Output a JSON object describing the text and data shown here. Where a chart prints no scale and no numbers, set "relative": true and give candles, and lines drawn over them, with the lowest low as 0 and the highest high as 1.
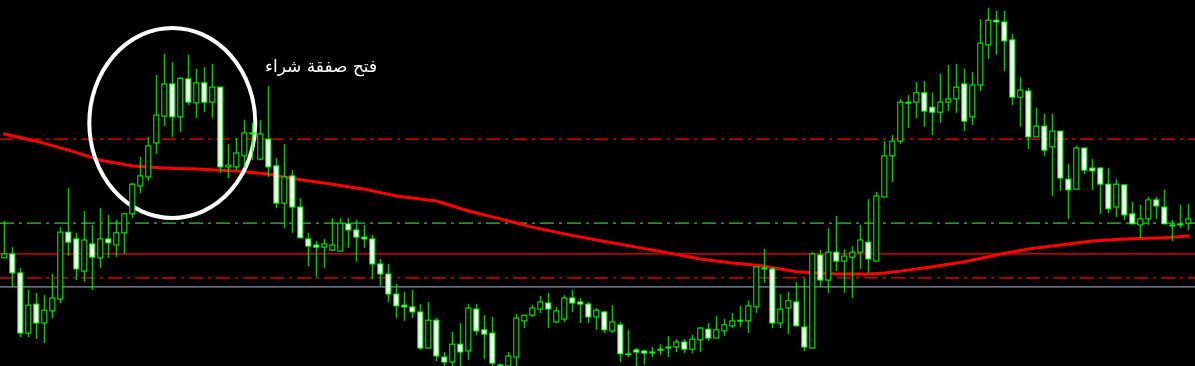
{
  "chart_data": {
    "type": "candlestick",
    "relative": true,
    "annotations": [
      "فتح صفقة شراء"
    ],
    "categories": [
      null,
      null,
      null,
      null,
      null,
      null,
      null,
      null,
      null,
      null,
      null,
      null,
      null,
      null,
      null,
      null,
      null,
      null,
      null,
      null,
      null,
      null,
      null,
      null,
      null,
      null,
      null,
      null,
      null,
      null,
      null,
      null,
      null,
      null,
      null,
      null,
      null,
      null,
      null,
      null,
      null,
      null,
      null,
      null,
      null,
      null,
      null,
      null,
      null,
      null,
      null,
      null,
      null,
      null,
      null,
      null,
      null,
      null,
      null,
      null,
      null,
      null,
      null,
      null,
      null,
      null,
      null,
      null,
      null,
      null,
      null,
      null,
      null,
      null,
      null,
      null,
      null,
      null,
      null,
      null,
      null,
      null,
      null,
      null,
      null,
      null,
      null,
      null,
      null,
      null,
      null,
      null,
      null,
      null,
      null,
      null,
      null,
      null,
      null,
      null,
      null,
      null,
      null,
      null,
      null,
      null,
      null,
      null,
      null,
      null,
      null,
      null,
      null,
      null,
      null,
      null,
      null,
      null,
      null,
      null,
      null,
      null,
      null,
      null,
      null,
      null,
      null,
      null,
      null,
      null,
      null,
      null,
      null,
      null,
      null,
      null,
      null,
      null,
      null,
      null,
      null,
      null,
      null,
      null,
      null,
      null,
      null,
      null,
      null
    ],
    "ohlc": [
      [
        0.302,
        0.405,
        0.302,
        0.313
      ],
      [
        0.313,
        0.332,
        0.221,
        0.26
      ],
      [
        0.26,
        0.274,
        0.081,
        0.092
      ],
      [
        0.092,
        0.212,
        0.081,
        0.17
      ],
      [
        0.173,
        0.204,
        0.075,
        0.12
      ],
      [
        0.12,
        0.198,
        0.064,
        0.156
      ],
      [
        0.154,
        0.257,
        0.134,
        0.19
      ],
      [
        0.187,
        0.388,
        0.176,
        0.374
      ],
      [
        0.374,
        0.497,
        0.307,
        0.346
      ],
      [
        0.355,
        0.372,
        0.24,
        0.271
      ],
      [
        0.265,
        0.433,
        0.235,
        0.352
      ],
      [
        0.341,
        0.394,
        0.212,
        0.304
      ],
      [
        0.302,
        0.441,
        0.274,
        0.355
      ],
      [
        0.355,
        0.422,
        0.302,
        0.344
      ],
      [
        0.338,
        0.408,
        0.304,
        0.372
      ],
      [
        0.372,
        0.425,
        0.313,
        0.425
      ],
      [
        0.425,
        0.511,
        0.413,
        0.508
      ],
      [
        0.503,
        0.584,
        0.483,
        0.531
      ],
      [
        0.528,
        0.64,
        0.517,
        0.615
      ],
      [
        0.623,
        0.813,
        0.592,
        0.701
      ],
      [
        0.698,
        0.872,
        0.67,
        0.788
      ],
      [
        0.788,
        0.849,
        0.64,
        0.696
      ],
      [
        0.696,
        0.807,
        0.654,
        0.804
      ],
      [
        0.802,
        0.869,
        0.729,
        0.737
      ],
      [
        0.735,
        0.83,
        0.693,
        0.791
      ],
      [
        0.791,
        0.835,
        0.709,
        0.737
      ],
      [
        0.737,
        0.844,
        0.693,
        0.779
      ],
      [
        0.779,
        0.779,
        0.539,
        0.556
      ],
      [
        0.556,
        0.62,
        0.525,
        0.561
      ],
      [
        0.556,
        0.637,
        0.547,
        0.595
      ],
      [
        0.587,
        0.687,
        0.553,
        0.651
      ],
      [
        0.651,
        0.679,
        0.575,
        0.651
      ],
      [
        0.578,
        0.687,
        0.575,
        0.648
      ],
      [
        0.634,
        0.782,
        0.528,
        0.556
      ],
      [
        0.559,
        0.581,
        0.441,
        0.455
      ],
      [
        0.455,
        0.62,
        0.385,
        0.528
      ],
      [
        0.531,
        0.547,
        0.372,
        0.444
      ],
      [
        0.444,
        0.469,
        0.358,
        0.358
      ],
      [
        0.355,
        0.372,
        0.279,
        0.335
      ],
      [
        0.338,
        0.349,
        0.249,
        0.332
      ],
      [
        0.332,
        0.355,
        0.274,
        0.341
      ],
      [
        0.324,
        0.413,
        0.321,
        0.338
      ],
      [
        0.321,
        0.413,
        0.321,
        0.399
      ],
      [
        0.397,
        0.413,
        0.33,
        0.38
      ],
      [
        0.38,
        0.408,
        0.291,
        0.36
      ],
      [
        0.36,
        0.394,
        0.33,
        0.355
      ],
      [
        0.355,
        0.366,
        0.243,
        0.285
      ],
      [
        0.285,
        0.299,
        0.223,
        0.257
      ],
      [
        0.257,
        0.285,
        0.179,
        0.201
      ],
      [
        0.201,
        0.229,
        0.134,
        0.168
      ],
      [
        0.17,
        0.207,
        0.126,
        0.165
      ],
      [
        0.165,
        0.212,
        0.134,
        0.151
      ],
      [
        0.151,
        0.173,
        0.045,
        0.05
      ],
      [
        0.05,
        0.179,
        0.05,
        0.128
      ],
      [
        0.128,
        0.134,
        0.014,
        0.028
      ],
      [
        0.025,
        0.039,
        0,
        0.011
      ],
      [
        0.011,
        0.095,
        0,
        0.061
      ],
      [
        0.061,
        0.12,
        0,
        0.039
      ],
      [
        0.042,
        0.173,
        0.017,
        0.162
      ],
      [
        0.159,
        0.173,
        0.087,
        0.098
      ],
      [
        0.101,
        0.142,
        0.02,
        0.089
      ],
      [
        0.092,
        0.137,
        0,
        0.008
      ],
      [
        0.003,
        0.006,
        0,
        0
      ],
      [
        0,
        0.039,
        0,
        0.028
      ],
      [
        0.025,
        0.145,
        0,
        0.134
      ],
      [
        0.126,
        0.142,
        0.106,
        0.142
      ],
      [
        0.142,
        0.17,
        0.137,
        0.162
      ],
      [
        0.159,
        0.196,
        0.148,
        0.179
      ],
      [
        0.176,
        0.204,
        0.106,
        0.159
      ],
      [
        0.123,
        0.165,
        0.12,
        0.154
      ],
      [
        0.131,
        0.198,
        0.123,
        0.19
      ],
      [
        0.19,
        0.212,
        0.151,
        0.176
      ],
      [
        0.179,
        0.19,
        0.12,
        0.173
      ],
      [
        0.173,
        0.179,
        0.12,
        0.137
      ],
      [
        0.137,
        0.162,
        0.101,
        0.156
      ],
      [
        0.151,
        0.154,
        0.092,
        0.101
      ],
      [
        0.098,
        0.17,
        0.092,
        0.123
      ],
      [
        0.115,
        0.123,
        0.011,
        0.034
      ],
      [
        0.034,
        0.101,
        0.025,
        0.034
      ],
      [
        0.045,
        0.05,
        0,
        0.039
      ],
      [
        0.042,
        0.045,
        0.003,
        0.036
      ],
      [
        0.039,
        0.053,
        0.025,
        0.039
      ],
      [
        0.047,
        0.061,
        0.031,
        0.047
      ],
      [
        0.053,
        0.084,
        0.025,
        0.053
      ],
      [
        0.053,
        0.075,
        0.039,
        0.067
      ],
      [
        0.067,
        0.075,
        0.036,
        0.047
      ],
      [
        0.047,
        0.087,
        0.036,
        0.075
      ],
      [
        0.073,
        0.109,
        0.039,
        0.106
      ],
      [
        0.103,
        0.12,
        0.07,
        0.078
      ],
      [
        0.078,
        0.14,
        0.078,
        0.101
      ],
      [
        0.098,
        0.131,
        0.084,
        0.115
      ],
      [
        0.112,
        0.148,
        0.106,
        0.126
      ],
      [
        0.126,
        0.168,
        0.109,
        0.128
      ],
      [
        0.126,
        0.182,
        0.092,
        0.168
      ],
      [
        0.165,
        0.277,
        0.148,
        0.277
      ],
      [
        0.274,
        0.327,
        0.232,
        0.274
      ],
      [
        0.271,
        0.277,
        0.106,
        0.12
      ],
      [
        0.12,
        0.201,
        0.106,
        0.159
      ],
      [
        0.162,
        0.207,
        0.089,
        0.182
      ],
      [
        0.179,
        0.235,
        0.112,
        0.112
      ],
      [
        0.109,
        0.243,
        0.042,
        0.053
      ],
      [
        0.05,
        0.318,
        0.05,
        0.313
      ],
      [
        0.31,
        0.324,
        0.223,
        0.24
      ],
      [
        0.24,
        0.385,
        0.204,
        0.318
      ],
      [
        0.318,
        0.419,
        0.265,
        0.293
      ],
      [
        0.293,
        0.327,
        0.204,
        0.307
      ],
      [
        0.304,
        0.335,
        0.19,
        0.318
      ],
      [
        0.318,
        0.394,
        0.271,
        0.352
      ],
      [
        0.346,
        0.466,
        0.26,
        0.299
      ],
      [
        0.293,
        0.486,
        0.291,
        0.475
      ],
      [
        0.472,
        0.628,
        0.472,
        0.587
      ],
      [
        0.587,
        0.645,
        0.514,
        0.628
      ],
      [
        0.628,
        0.746,
        0.62,
        0.737
      ],
      [
        0.737,
        0.757,
        0.665,
        0.737
      ],
      [
        0.737,
        0.793,
        0.693,
        0.763
      ],
      [
        0.763,
        0.796,
        0.668,
        0.712
      ],
      [
        0.723,
        0.763,
        0.645,
        0.709
      ],
      [
        0.709,
        0.816,
        0.679,
        0.737
      ],
      [
        0.737,
        0.841,
        0.712,
        0.746
      ],
      [
        0.746,
        0.844,
        0.707,
        0.779
      ],
      [
        0.788,
        0.83,
        0.656,
        0.684
      ],
      [
        0.696,
        0.821,
        0.673,
        0.785
      ],
      [
        0.785,
        0.969,
        0.768,
        0.902
      ],
      [
        0.897,
        1.0,
        0.858,
        0.966
      ],
      [
        0.966,
        0.992,
        0.869,
        0.961
      ],
      [
        0.961,
        0.992,
        0.824,
        0.908
      ],
      [
        0.911,
        0.927,
        0.729,
        0.751
      ],
      [
        0.751,
        0.807,
        0.668,
        0.771
      ],
      [
        0.768,
        0.777,
        0.606,
        0.64
      ],
      [
        0.64,
        0.721,
        0.64,
        0.67
      ],
      [
        0.67,
        0.704,
        0.587,
        0.603
      ],
      [
        0.612,
        0.704,
        0.475,
        0.656
      ],
      [
        0.656,
        0.656,
        0.489,
        0.525
      ],
      [
        0.522,
        0.564,
        0.411,
        0.492
      ],
      [
        0.494,
        0.615,
        0.494,
        0.609
      ],
      [
        0.609,
        0.609,
        0.536,
        0.547
      ],
      [
        0.553,
        0.578,
        0.492,
        0.545
      ],
      [
        0.553,
        0.556,
        0.425,
        0.508
      ],
      [
        0.508,
        0.553,
        0.427,
        0.439
      ],
      [
        0.444,
        0.522,
        0.416,
        0.508
      ],
      [
        0.506,
        0.506,
        0.408,
        0.422
      ],
      [
        0.425,
        0.458,
        0.397,
        0.397
      ],
      [
        0.394,
        0.45,
        0.358,
        0.411
      ],
      [
        0.411,
        0.472,
        0.394,
        0.464
      ],
      [
        0.464,
        0.472,
        0.411,
        0.447
      ],
      [
        0.444,
        0.492,
        0.397,
        0.397
      ],
      [
        0.394,
        0.408,
        0.349,
        0.394
      ],
      [
        0.397,
        0.45,
        0.385,
        0.397
      ],
      [
        0.399,
        0.453,
        0.38,
        0.411
      ]
    ],
    "series": [
      {
        "type": "line",
        "color": "#ff0000",
        "values": [
          0.648,
          null,
          null,
          null,
          0.628,
          null,
          null,
          null,
          0.603,
          null,
          null,
          null,
          0.575,
          null,
          null,
          null,
          0.559,
          null,
          null,
          null,
          0.553,
          null,
          null,
          null,
          0.55,
          null,
          null,
          null,
          null,
          0.545,
          null,
          null,
          null,
          0.536,
          null,
          null,
          null,
          0.52,
          null,
          null,
          null,
          0.508,
          null,
          null,
          null,
          0.494,
          null,
          null,
          null,
          0.475,
          null,
          null,
          null,
          null,
          0.461,
          null,
          null,
          null,
          0.433,
          null,
          null,
          null,
          0.411,
          null,
          null,
          null,
          0.388,
          null,
          null,
          null,
          0.369,
          null,
          null,
          null,
          0.352,
          null,
          null,
          null,
          null,
          0.332,
          null,
          null,
          null,
          0.316,
          null,
          null,
          null,
          0.299,
          null,
          null,
          null,
          0.288,
          null,
          null,
          null,
          0.279,
          null,
          null,
          null,
          0.263,
          null,
          null,
          null,
          null,
          0.257,
          null,
          null,
          null,
          0.257,
          null,
          0.26,
          null,
          0.265,
          null,
          null,
          null,
          0.277,
          null,
          null,
          null,
          0.291,
          null,
          null,
          null,
          0.31,
          null,
          null,
          null,
          0.327,
          null,
          null,
          null,
          0.338,
          null,
          null,
          null,
          0.349,
          null,
          null,
          null,
          0.355,
          null,
          null,
          null,
          null,
          0.358,
          null,
          null,
          0.363
        ]
      }
    ],
    "ref_lines": [
      {
        "axis": "y",
        "value": 0.634,
        "color": "#ff0000",
        "line_style": "dashed"
      },
      {
        "axis": "y",
        "value": 0.399,
        "color": "#44bb44",
        "line_style": "dashed"
      },
      {
        "axis": "y",
        "value": 0.313,
        "color": "#ff0000",
        "line_style": "solid"
      },
      {
        "axis": "y",
        "value": 0.246,
        "color": "#ff0000",
        "line_style": "dashed"
      },
      {
        "axis": "y",
        "value": 0.221,
        "color": "#8a94a0",
        "line_style": "solid"
      }
    ]
  }
}
